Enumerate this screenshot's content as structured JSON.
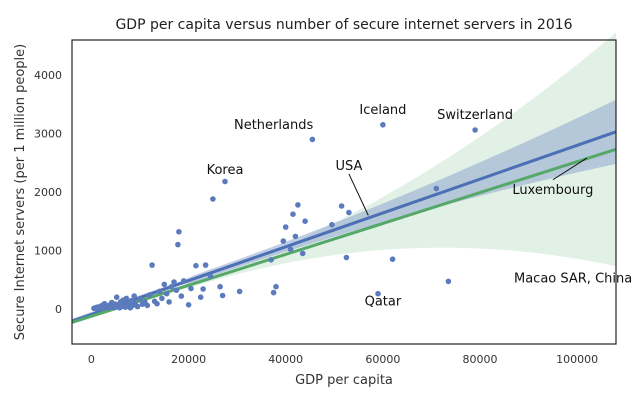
{
  "chart_data": {
    "type": "scatter",
    "title": "GDP per capita versus number of secure internet servers in 2016",
    "xlabel": "GDP per capita",
    "ylabel": "Secure Internet servers (per 1 million people)",
    "xlim": [
      -4000,
      108000
    ],
    "ylim": [
      -600,
      4600
    ],
    "xticks": [
      0,
      20000,
      40000,
      60000,
      80000,
      100000
    ],
    "yticks": [
      0,
      1000,
      2000,
      3000,
      4000
    ],
    "grid": false,
    "colors": {
      "points": "#5b7bbd",
      "fit_line_a": "#4c6fb5",
      "fit_band_a": "#8fa6cf",
      "fit_line_b": "#55a868",
      "fit_band_b": "#cfe7d5"
    },
    "points": [
      {
        "x": 500,
        "y": 10
      },
      {
        "x": 800,
        "y": 20
      },
      {
        "x": 1000,
        "y": 5
      },
      {
        "x": 1200,
        "y": 30
      },
      {
        "x": 1500,
        "y": 15
      },
      {
        "x": 1800,
        "y": 40
      },
      {
        "x": 2000,
        "y": 25
      },
      {
        "x": 2200,
        "y": 60
      },
      {
        "x": 2500,
        "y": 10
      },
      {
        "x": 2700,
        "y": 90
      },
      {
        "x": 3000,
        "y": 35
      },
      {
        "x": 3200,
        "y": 50
      },
      {
        "x": 3500,
        "y": 20
      },
      {
        "x": 3800,
        "y": 70
      },
      {
        "x": 4000,
        "y": 30
      },
      {
        "x": 4200,
        "y": 110
      },
      {
        "x": 4500,
        "y": 45
      },
      {
        "x": 4800,
        "y": 25
      },
      {
        "x": 5000,
        "y": 80
      },
      {
        "x": 5200,
        "y": 200
      },
      {
        "x": 5500,
        "y": 60
      },
      {
        "x": 5800,
        "y": 20
      },
      {
        "x": 6000,
        "y": 120
      },
      {
        "x": 6200,
        "y": 40
      },
      {
        "x": 6500,
        "y": 150
      },
      {
        "x": 6800,
        "y": 70
      },
      {
        "x": 7000,
        "y": 30
      },
      {
        "x": 7200,
        "y": 180
      },
      {
        "x": 7500,
        "y": 50
      },
      {
        "x": 7800,
        "y": 100
      },
      {
        "x": 8000,
        "y": 20
      },
      {
        "x": 8200,
        "y": 140
      },
      {
        "x": 8500,
        "y": 60
      },
      {
        "x": 8800,
        "y": 220
      },
      {
        "x": 9000,
        "y": 90
      },
      {
        "x": 9500,
        "y": 40
      },
      {
        "x": 10000,
        "y": 170
      },
      {
        "x": 10500,
        "y": 80
      },
      {
        "x": 11000,
        "y": 120
      },
      {
        "x": 11500,
        "y": 60
      },
      {
        "x": 12000,
        "y": 240
      },
      {
        "x": 12500,
        "y": 750
      },
      {
        "x": 13000,
        "y": 130
      },
      {
        "x": 13500,
        "y": 90
      },
      {
        "x": 14000,
        "y": 300
      },
      {
        "x": 14500,
        "y": 180
      },
      {
        "x": 15000,
        "y": 420
      },
      {
        "x": 15500,
        "y": 260
      },
      {
        "x": 16000,
        "y": 120
      },
      {
        "x": 16500,
        "y": 380
      },
      {
        "x": 17000,
        "y": 460
      },
      {
        "x": 17500,
        "y": 320
      },
      {
        "x": 17800,
        "y": 1100
      },
      {
        "x": 18000,
        "y": 1320
      },
      {
        "x": 18500,
        "y": 220
      },
      {
        "x": 19000,
        "y": 480
      },
      {
        "x": 20000,
        "y": 70
      },
      {
        "x": 20500,
        "y": 350
      },
      {
        "x": 21500,
        "y": 740
      },
      {
        "x": 22500,
        "y": 200
      },
      {
        "x": 23000,
        "y": 340
      },
      {
        "x": 23500,
        "y": 750
      },
      {
        "x": 24500,
        "y": 560
      },
      {
        "x": 25000,
        "y": 1880
      },
      {
        "x": 26500,
        "y": 380
      },
      {
        "x": 27000,
        "y": 230
      },
      {
        "x": 27500,
        "y": 2180
      },
      {
        "x": 30500,
        "y": 300
      },
      {
        "x": 37000,
        "y": 840
      },
      {
        "x": 37500,
        "y": 280
      },
      {
        "x": 38000,
        "y": 380
      },
      {
        "x": 39500,
        "y": 1160
      },
      {
        "x": 40000,
        "y": 1400
      },
      {
        "x": 41000,
        "y": 1020
      },
      {
        "x": 41500,
        "y": 1620
      },
      {
        "x": 42000,
        "y": 1240
      },
      {
        "x": 42500,
        "y": 1780
      },
      {
        "x": 43500,
        "y": 950
      },
      {
        "x": 44000,
        "y": 1500
      },
      {
        "x": 45500,
        "y": 2900
      },
      {
        "x": 49500,
        "y": 1440
      },
      {
        "x": 51500,
        "y": 1760
      },
      {
        "x": 52500,
        "y": 880
      },
      {
        "x": 53000,
        "y": 1650
      },
      {
        "x": 59000,
        "y": 260
      },
      {
        "x": 60000,
        "y": 3150
      },
      {
        "x": 62000,
        "y": 850
      },
      {
        "x": 71000,
        "y": 2060
      },
      {
        "x": 73500,
        "y": 470
      },
      {
        "x": 79000,
        "y": 3060
      }
    ],
    "fits": [
      {
        "color_key": "fit_line_a",
        "band_key": "fit_band_a",
        "x": [
          -4000,
          108000
        ],
        "y": [
          -210,
          3030
        ],
        "band_width_at_ends": [
          60,
          550
        ]
      },
      {
        "color_key": "fit_line_b",
        "band_key": "fit_band_b",
        "x": [
          -4000,
          108000
        ],
        "y": [
          -230,
          2730
        ],
        "band_width_at_ends": [
          50,
          2000
        ]
      }
    ],
    "annotations": [
      {
        "text": "Iceland",
        "x": 60000,
        "y": 3150,
        "tx": 60000,
        "ty": 3330
      },
      {
        "text": "Netherlands",
        "x": 45500,
        "y": 2900,
        "tx": 37500,
        "ty": 3080
      },
      {
        "text": "Switzerland",
        "x": 79000,
        "y": 3060,
        "tx": 79000,
        "ty": 3250
      },
      {
        "text": "Korea",
        "x": 27500,
        "y": 2180,
        "tx": 27500,
        "ty": 2310
      },
      {
        "text": "USA",
        "x": 57000,
        "y": 1600,
        "tx": 53000,
        "ty": 2380
      },
      {
        "text": "Luxembourg",
        "x": 102000,
        "y": 2580,
        "tx": 95000,
        "ty": 1970
      },
      {
        "text": "Macao SAR, China",
        "x": 73500,
        "y": 470,
        "tx": 87000,
        "ty": 450
      },
      {
        "text": "Qatar",
        "x": 59000,
        "y": 260,
        "tx": 60000,
        "ty": 60
      }
    ]
  }
}
